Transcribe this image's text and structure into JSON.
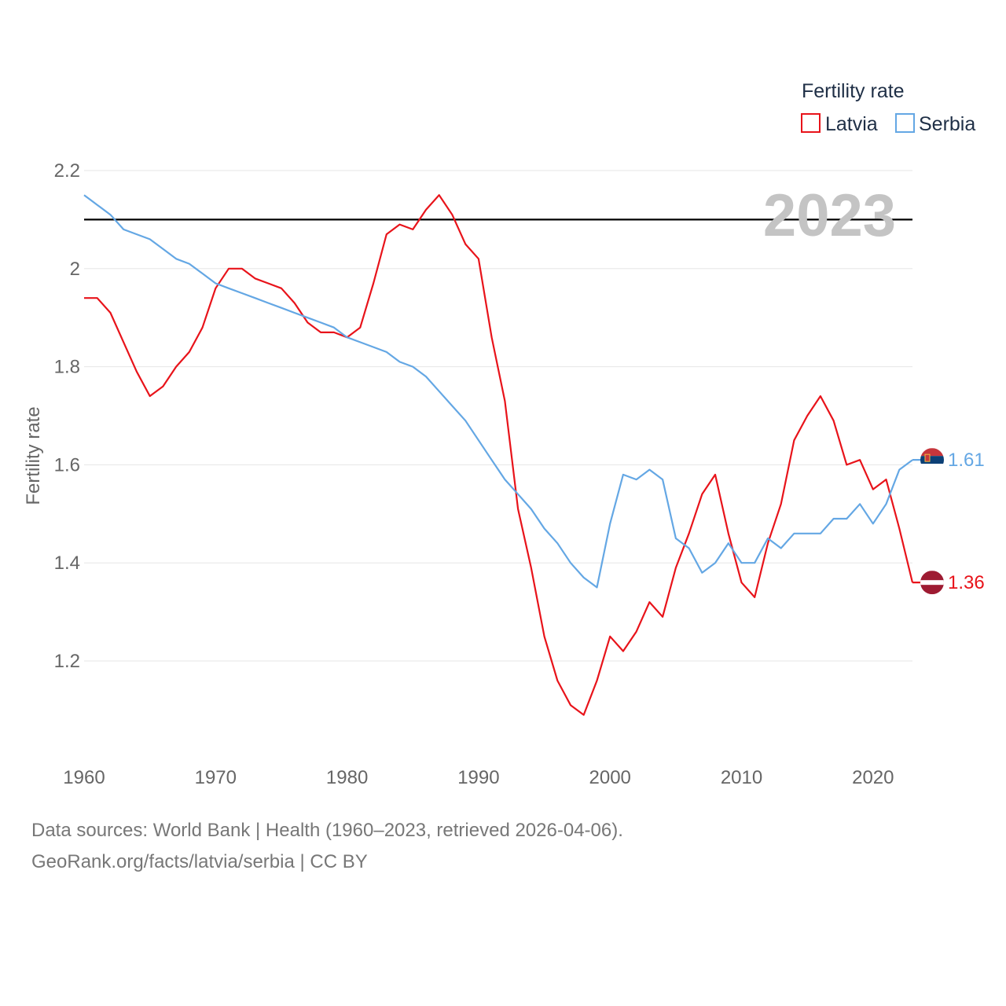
{
  "chart_data": {
    "type": "line",
    "title": "",
    "ylabel": "Fertility rate",
    "xlabel": "",
    "xlim": [
      1960,
      2023
    ],
    "ylim": [
      1.05,
      2.25
    ],
    "x_ticks": [
      1960,
      1970,
      1980,
      1990,
      2000,
      2010,
      2020
    ],
    "y_ticks": [
      1.2,
      1.4,
      1.6,
      1.8,
      2,
      2.2
    ],
    "y_tick_labels": [
      "1.2",
      "1.4",
      "1.6",
      "1.8",
      "2",
      "2.2"
    ],
    "reference_line": {
      "y": 2.1,
      "color": "#000000"
    },
    "year_label": "2023",
    "legend": {
      "title": "Fertility rate",
      "position": "top-right"
    },
    "x": [
      1960,
      1961,
      1962,
      1963,
      1964,
      1965,
      1966,
      1967,
      1968,
      1969,
      1970,
      1971,
      1972,
      1973,
      1974,
      1975,
      1976,
      1977,
      1978,
      1979,
      1980,
      1981,
      1982,
      1983,
      1984,
      1985,
      1986,
      1987,
      1988,
      1989,
      1990,
      1991,
      1992,
      1993,
      1994,
      1995,
      1996,
      1997,
      1998,
      1999,
      2000,
      2001,
      2002,
      2003,
      2004,
      2005,
      2006,
      2007,
      2008,
      2009,
      2010,
      2011,
      2012,
      2013,
      2014,
      2015,
      2016,
      2017,
      2018,
      2019,
      2020,
      2021,
      2022,
      2023
    ],
    "series": [
      {
        "name": "Latvia",
        "color": "#e8131a",
        "end_label": "1.36",
        "values": [
          1.94,
          1.94,
          1.91,
          1.85,
          1.79,
          1.74,
          1.76,
          1.8,
          1.83,
          1.88,
          1.96,
          2.0,
          2.0,
          1.98,
          1.97,
          1.96,
          1.93,
          1.89,
          1.87,
          1.87,
          1.86,
          1.88,
          1.97,
          2.07,
          2.09,
          2.08,
          2.12,
          2.15,
          2.11,
          2.05,
          2.02,
          1.86,
          1.73,
          1.51,
          1.39,
          1.25,
          1.16,
          1.11,
          1.09,
          1.16,
          1.25,
          1.22,
          1.26,
          1.32,
          1.29,
          1.39,
          1.46,
          1.54,
          1.58,
          1.46,
          1.36,
          1.33,
          1.44,
          1.52,
          1.65,
          1.7,
          1.74,
          1.69,
          1.6,
          1.61,
          1.55,
          1.57,
          1.47,
          1.36
        ]
      },
      {
        "name": "Serbia",
        "color": "#64a7e4",
        "end_label": "1.61",
        "values": [
          2.15,
          2.13,
          2.11,
          2.08,
          2.07,
          2.06,
          2.04,
          2.02,
          2.01,
          1.99,
          1.97,
          1.96,
          1.95,
          1.94,
          1.93,
          1.92,
          1.91,
          1.9,
          1.89,
          1.88,
          1.86,
          1.85,
          1.84,
          1.83,
          1.81,
          1.8,
          1.78,
          1.75,
          1.72,
          1.69,
          1.65,
          1.61,
          1.57,
          1.54,
          1.51,
          1.47,
          1.44,
          1.4,
          1.37,
          1.35,
          1.48,
          1.58,
          1.57,
          1.59,
          1.57,
          1.45,
          1.43,
          1.38,
          1.4,
          1.44,
          1.4,
          1.4,
          1.45,
          1.43,
          1.46,
          1.46,
          1.46,
          1.49,
          1.49,
          1.52,
          1.48,
          1.52,
          1.59,
          1.61
        ]
      }
    ]
  },
  "footer": {
    "line1": "Data sources: World Bank | Health (1960–2023, retrieved 2026-04-06).",
    "line2": "GeoRank.org/facts/latvia/serbia | CC BY"
  }
}
